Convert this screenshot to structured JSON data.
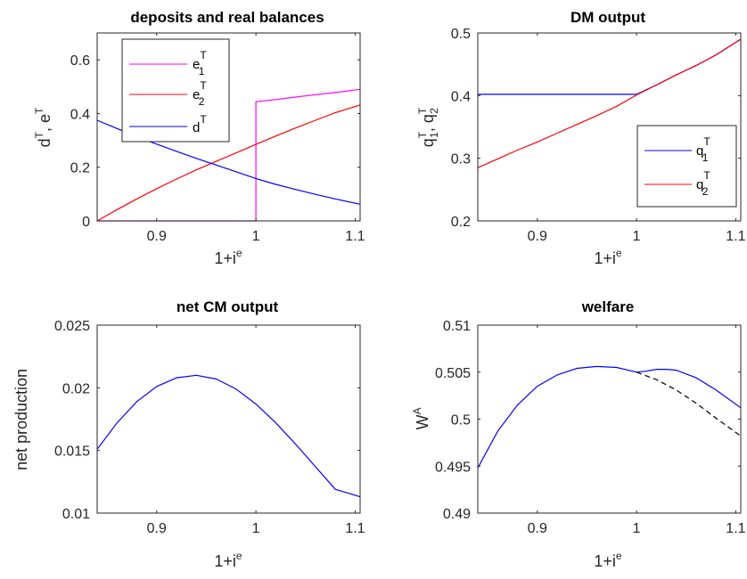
{
  "chart_data": [
    {
      "type": "line",
      "title": "deposits and real balances",
      "xlabel_base": "1+i",
      "xlabel_sup": "e",
      "ylabel": {
        "parts": [
          "d",
          "T",
          ", e",
          "T"
        ]
      },
      "xlim": [
        0.84,
        1.105
      ],
      "ylim": [
        0,
        0.7
      ],
      "xticks": [
        0.9,
        1,
        1.1
      ],
      "xtick_labels": [
        "0.9",
        "1",
        "1.1"
      ],
      "yticks": [
        0,
        0.2,
        0.4,
        0.6
      ],
      "ytick_labels": [
        "0",
        "0.2",
        "0.4",
        "0.6"
      ],
      "legend_position": "top-center",
      "series": [
        {
          "name": "e1T",
          "label": {
            "b": "e",
            "sup": "T",
            "sub": "1"
          },
          "color": "#ff00ff",
          "x": [
            0.84,
            0.9,
            1.0,
            1.0,
            1.0,
            1.02,
            1.04,
            1.06,
            1.08,
            1.105
          ],
          "y": [
            0,
            0,
            0,
            0.222,
            0.444,
            0.452,
            0.461,
            0.47,
            0.478,
            0.49
          ]
        },
        {
          "name": "e2T",
          "label": {
            "b": "e",
            "sup": "T",
            "sub": "2"
          },
          "color": "#ff0000",
          "x": [
            0.84,
            0.86,
            0.88,
            0.9,
            0.92,
            0.94,
            0.96,
            0.98,
            1.0,
            1.02,
            1.04,
            1.06,
            1.08,
            1.105
          ],
          "y": [
            0,
            0.042,
            0.082,
            0.12,
            0.156,
            0.19,
            0.222,
            0.253,
            0.285,
            0.316,
            0.346,
            0.375,
            0.403,
            0.432
          ]
        },
        {
          "name": "dT",
          "label": {
            "b": "d",
            "sup": "T",
            "sub": ""
          },
          "color": "#0000ff",
          "x": [
            0.84,
            0.86,
            0.88,
            0.9,
            0.92,
            0.94,
            0.96,
            0.98,
            1.0,
            1.02,
            1.04,
            1.06,
            1.08,
            1.105
          ],
          "y": [
            0.375,
            0.344,
            0.314,
            0.286,
            0.259,
            0.233,
            0.208,
            0.183,
            0.158,
            0.136,
            0.117,
            0.099,
            0.082,
            0.062
          ]
        }
      ]
    },
    {
      "type": "line",
      "title": "DM output",
      "xlabel_base": "1+i",
      "xlabel_sup": "e",
      "ylabel": {
        "parts": [
          "q",
          "T",
          "1",
          ", q",
          "T",
          "2"
        ]
      },
      "xlim": [
        0.84,
        1.105
      ],
      "ylim": [
        0.2,
        0.5
      ],
      "xticks": [
        0.9,
        1,
        1.1
      ],
      "xtick_labels": [
        "0.9",
        "1",
        "1.1"
      ],
      "yticks": [
        0.2,
        0.3,
        0.4,
        0.5
      ],
      "ytick_labels": [
        "0.2",
        "0.3",
        "0.4",
        "0.5"
      ],
      "legend_position": "middle-right",
      "series": [
        {
          "name": "q1T",
          "label": {
            "b": "q",
            "sup": "T",
            "sub": "1"
          },
          "color": "#0000ff",
          "x": [
            0.84,
            0.9,
            1.0,
            1.02,
            1.04,
            1.06,
            1.08,
            1.105
          ],
          "y": [
            0.402,
            0.402,
            0.402,
            0.417,
            0.433,
            0.448,
            0.465,
            0.49
          ]
        },
        {
          "name": "q2T",
          "label": {
            "b": "q",
            "sup": "T",
            "sub": "2"
          },
          "color": "#ff0000",
          "x": [
            0.84,
            0.86,
            0.88,
            0.9,
            0.92,
            0.94,
            0.96,
            0.98,
            1.0,
            1.02,
            1.04,
            1.06,
            1.08,
            1.105
          ],
          "y": [
            0.285,
            0.299,
            0.313,
            0.326,
            0.34,
            0.354,
            0.368,
            0.383,
            0.401,
            0.417,
            0.433,
            0.448,
            0.465,
            0.49
          ]
        }
      ]
    },
    {
      "type": "line",
      "title": "net CM output",
      "xlabel_base": "1+i",
      "xlabel_sup": "e",
      "ylabel": {
        "parts": [
          "net production"
        ]
      },
      "xlim": [
        0.84,
        1.105
      ],
      "ylim": [
        0.01,
        0.025
      ],
      "xticks": [
        0.9,
        1,
        1.1
      ],
      "xtick_labels": [
        "0.9",
        "1",
        "1.1"
      ],
      "yticks": [
        0.01,
        0.015,
        0.02,
        0.025
      ],
      "ytick_labels": [
        "0.01",
        "0.015",
        "0.02",
        "0.025"
      ],
      "series": [
        {
          "name": "net production",
          "color": "#0000ff",
          "x": [
            0.84,
            0.86,
            0.88,
            0.9,
            0.92,
            0.94,
            0.96,
            0.98,
            1.0,
            1.02,
            1.04,
            1.06,
            1.08,
            1.105
          ],
          "y": [
            0.0151,
            0.0172,
            0.0189,
            0.0201,
            0.0208,
            0.021,
            0.0207,
            0.0199,
            0.0187,
            0.0172,
            0.0155,
            0.0137,
            0.0119,
            0.0113
          ]
        }
      ]
    },
    {
      "type": "line",
      "title": "welfare",
      "xlabel_base": "1+i",
      "xlabel_sup": "e",
      "ylabel": {
        "parts": [
          "W",
          "A"
        ]
      },
      "xlim": [
        0.84,
        1.105
      ],
      "ylim": [
        0.49,
        0.51
      ],
      "xticks": [
        0.9,
        1,
        1.1
      ],
      "xtick_labels": [
        "0.9",
        "1",
        "1.1"
      ],
      "yticks": [
        0.49,
        0.495,
        0.5,
        0.505,
        0.51
      ],
      "ytick_labels": [
        "0.49",
        "0.495",
        "0.5",
        "0.505",
        "0.51"
      ],
      "series": [
        {
          "name": "welfare (solid)",
          "color": "#0000ff",
          "dash": false,
          "x": [
            0.84,
            0.86,
            0.88,
            0.9,
            0.92,
            0.94,
            0.96,
            0.98,
            1.0,
            1.01,
            1.02,
            1.03,
            1.04,
            1.06,
            1.08,
            1.105
          ],
          "y": [
            0.4948,
            0.4987,
            0.5015,
            0.5035,
            0.5047,
            0.5054,
            0.5056,
            0.5055,
            0.505,
            0.5051,
            0.5053,
            0.5053,
            0.5052,
            0.5044,
            0.5031,
            0.5012
          ]
        },
        {
          "name": "welfare (dashed)",
          "color": "#000000",
          "dash": true,
          "x": [
            1.0,
            1.02,
            1.04,
            1.06,
            1.08,
            1.105
          ],
          "y": [
            0.505,
            0.5042,
            0.5031,
            0.5017,
            0.5001,
            0.4982
          ]
        }
      ]
    }
  ]
}
